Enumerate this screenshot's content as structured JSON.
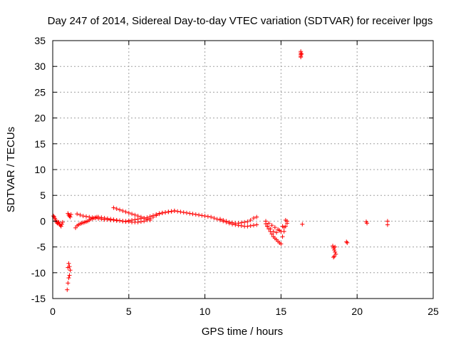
{
  "chart_data": {
    "type": "scatter",
    "title": "Day 247 of 2014, Sidereal Day-to-day VTEC variation (SDTVAR) for receiver lpgs",
    "xlabel": "GPS time / hours",
    "ylabel": "SDTVAR / TECUs",
    "xlim": [
      0,
      25
    ],
    "ylim": [
      -15,
      35
    ],
    "xticks": [
      0,
      5,
      10,
      15,
      20,
      25
    ],
    "yticks": [
      -15,
      -10,
      -5,
      0,
      5,
      10,
      15,
      20,
      25,
      30,
      35
    ],
    "grid": true,
    "marker": "+",
    "color": "#ff0000",
    "series": [
      {
        "name": "SDTVAR",
        "x": [
          0.05,
          0.1,
          0.15,
          0.2,
          0.25,
          0.3,
          0.35,
          0.4,
          0.45,
          0.5,
          0.55,
          0.6,
          0.65,
          1.0,
          1.05,
          1.1,
          1.15,
          1.2,
          0.95,
          1.0,
          1.05,
          1.1,
          1.15,
          1.1,
          1.05,
          1.0,
          1.5,
          1.6,
          1.7,
          1.8,
          1.9,
          2.0,
          2.1,
          2.2,
          2.3,
          2.4,
          2.5,
          2.6,
          2.7,
          2.8,
          2.9,
          3.0,
          3.2,
          3.4,
          3.6,
          3.8,
          4.0,
          4.2,
          4.4,
          4.6,
          4.8,
          5.0,
          5.2,
          5.4,
          5.6,
          5.8,
          6.0,
          6.2,
          6.4,
          6.6,
          6.8,
          7.0,
          7.2,
          7.4,
          7.6,
          7.8,
          8.0,
          8.2,
          8.4,
          8.6,
          8.8,
          9.0,
          9.2,
          9.4,
          9.6,
          9.8,
          10.0,
          10.2,
          10.4,
          10.6,
          10.8,
          11.0,
          11.2,
          11.4,
          11.6,
          11.8,
          12.0,
          12.2,
          12.4,
          12.6,
          12.8,
          13.0,
          13.2,
          13.4,
          1.6,
          1.8,
          2.0,
          2.2,
          2.4,
          2.6,
          2.8,
          3.0,
          3.2,
          3.4,
          3.6,
          3.8,
          4.0,
          4.2,
          4.4,
          4.6,
          4.8,
          5.0,
          5.2,
          5.4,
          5.6,
          5.8,
          6.0,
          6.2,
          6.4,
          6.6,
          6.8,
          7.0,
          7.2,
          7.4,
          7.6,
          7.8,
          8.0,
          4.0,
          4.2,
          4.4,
          4.6,
          4.8,
          5.0,
          5.2,
          5.4,
          5.6,
          5.8,
          6.0,
          6.2,
          6.4,
          11.0,
          11.2,
          11.4,
          11.6,
          11.8,
          12.0,
          12.2,
          12.4,
          12.6,
          12.8,
          13.0,
          13.2,
          13.4,
          14.0,
          14.1,
          14.2,
          14.3,
          14.4,
          14.5,
          14.6,
          14.7,
          14.8,
          14.9,
          15.0,
          15.1,
          15.2,
          15.3,
          15.4,
          14.0,
          14.2,
          14.4,
          14.6,
          14.8,
          15.0,
          15.2,
          15.4,
          14.1,
          14.3,
          14.5,
          14.7,
          14.9,
          15.1,
          15.3,
          16.3,
          16.3,
          16.3,
          16.3,
          16.3,
          16.35,
          18.4,
          18.45,
          18.5,
          18.55,
          18.6,
          18.45,
          18.5,
          18.55,
          19.3,
          19.35,
          20.6,
          20.65,
          22.0,
          22.0,
          16.4
        ],
        "y": [
          1.0,
          0.8,
          0.5,
          0.2,
          -0.2,
          -0.4,
          -0.3,
          -0.2,
          -0.6,
          -0.8,
          -1.0,
          -0.6,
          -0.2,
          1.5,
          1.2,
          1.0,
          0.8,
          1.3,
          -13.3,
          -12.0,
          -11.0,
          -10.5,
          -9.5,
          -8.8,
          -8.2,
          -9.0,
          -1.3,
          -0.9,
          -0.7,
          -0.5,
          -0.4,
          -0.3,
          -0.2,
          -0.1,
          0.0,
          0.2,
          0.4,
          0.5,
          0.6,
          0.7,
          0.8,
          0.8,
          0.7,
          0.6,
          0.5,
          0.4,
          0.3,
          0.2,
          0.1,
          0.0,
          0.0,
          0.1,
          0.2,
          0.3,
          0.4,
          0.5,
          0.6,
          0.7,
          0.9,
          1.1,
          1.3,
          1.5,
          1.6,
          1.7,
          1.8,
          1.9,
          2.0,
          1.9,
          1.8,
          1.7,
          1.6,
          1.5,
          1.4,
          1.3,
          1.2,
          1.1,
          1.0,
          0.9,
          0.8,
          0.6,
          0.4,
          0.2,
          0.0,
          -0.2,
          -0.4,
          -0.6,
          -0.7,
          -0.8,
          -0.9,
          -1.0,
          -1.0,
          -0.9,
          -0.8,
          -0.7,
          1.4,
          1.2,
          1.0,
          0.9,
          0.8,
          0.7,
          0.6,
          0.5,
          0.4,
          0.3,
          0.3,
          0.2,
          0.2,
          0.1,
          0.1,
          0.0,
          -0.1,
          -0.1,
          -0.2,
          -0.2,
          -0.2,
          -0.1,
          0.0,
          0.2,
          0.5,
          0.8,
          1.1,
          1.4,
          1.6,
          1.7,
          1.8,
          1.9,
          2.0,
          2.6,
          2.4,
          2.2,
          2.0,
          1.8,
          1.6,
          1.4,
          1.2,
          1.0,
          0.8,
          0.6,
          0.4,
          0.2,
          0.4,
          0.2,
          0.0,
          -0.2,
          -0.3,
          -0.4,
          -0.4,
          -0.3,
          -0.2,
          -0.1,
          0.2,
          0.6,
          0.8,
          -0.5,
          -1.0,
          -1.5,
          -2.0,
          -2.5,
          -3.0,
          -3.3,
          -3.6,
          -3.9,
          -4.2,
          -4.4,
          -3.0,
          -2.0,
          -1.0,
          0.0,
          0.0,
          -0.4,
          -0.8,
          -1.2,
          -1.6,
          -2.0,
          -1.2,
          -0.4,
          -1.0,
          -1.5,
          -2.0,
          -2.2,
          -1.8,
          -1.0,
          0.2,
          32.0,
          32.3,
          32.6,
          32.9,
          31.8,
          32.4,
          -4.8,
          -5.2,
          -5.6,
          -6.0,
          -6.4,
          -7.0,
          -6.8,
          -5.0,
          -4.0,
          -4.2,
          -0.1,
          -0.4,
          0.0,
          -0.7,
          -0.6
        ]
      }
    ]
  }
}
